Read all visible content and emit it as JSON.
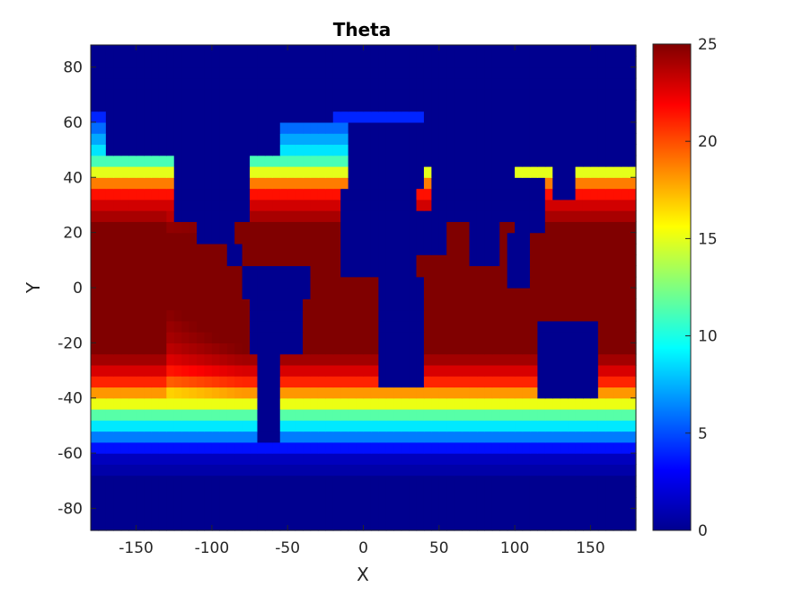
{
  "chart_data": {
    "type": "heatmap",
    "title": "Theta",
    "xlabel": "X",
    "ylabel": "Y",
    "xlim": [
      -180,
      180
    ],
    "ylim": [
      -88,
      88
    ],
    "x_ticks": [
      -150,
      -100,
      -50,
      0,
      50,
      100,
      150
    ],
    "y_ticks": [
      -80,
      -60,
      -40,
      -20,
      0,
      20,
      40,
      60,
      80
    ],
    "colorbar": {
      "colormap": "jet",
      "range": [
        0,
        25
      ],
      "ticks": [
        0,
        5,
        10,
        15,
        20,
        25
      ]
    },
    "grid": false,
    "land_color": "#00008f",
    "field_description_note": "",
    "zonal_profile": {
      "latitudes": [
        -88,
        -80,
        -70,
        -62,
        -58,
        -55,
        -52,
        -49,
        -46,
        -43,
        -40,
        -37,
        -34,
        -31,
        -28,
        -25,
        -22,
        -18,
        -12,
        0,
        12,
        18,
        22,
        26,
        30,
        33,
        36,
        39,
        42,
        45,
        48,
        52,
        56,
        60,
        64,
        68,
        72,
        88
      ],
      "theta": [
        0.3,
        0.3,
        0.5,
        1.5,
        3.5,
        5.5,
        7.5,
        9.5,
        11.5,
        14.5,
        16.5,
        19.0,
        21.0,
        22.5,
        23.5,
        24.5,
        25.0,
        25.5,
        26,
        27,
        26,
        25.5,
        25,
        24.0,
        23.0,
        22.0,
        20.5,
        18.0,
        15.0,
        12.0,
        9.5,
        8.0,
        6.5,
        5.0,
        3.0,
        1.5,
        0.8,
        0.3
      ]
    }
  }
}
